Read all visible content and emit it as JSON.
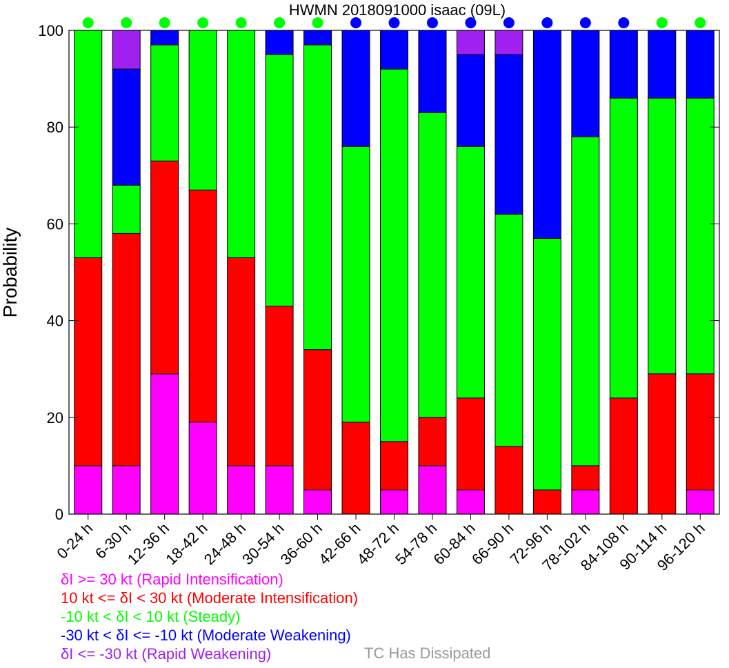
{
  "chart_data": {
    "type": "bar",
    "stacked": true,
    "title": "HWMN 2018091000 isaac (09L)",
    "ylabel": "Probability",
    "xlabel": "",
    "ylim": [
      0,
      100
    ],
    "yticks": [
      0,
      20,
      40,
      60,
      80,
      100
    ],
    "categories": [
      "0-24 h",
      "6-30 h",
      "12-36 h",
      "18-42 h",
      "24-48 h",
      "30-54 h",
      "36-60 h",
      "42-66 h",
      "48-72 h",
      "54-78 h",
      "60-84 h",
      "66-90 h",
      "72-96 h",
      "78-102 h",
      "84-108 h",
      "90-114 h",
      "96-120 h"
    ],
    "series": [
      {
        "name": "δI >= 30 kt (Rapid Intensification)",
        "color": "#ff00ff",
        "values": [
          10,
          10,
          29,
          19,
          10,
          10,
          5,
          0,
          5,
          10,
          5,
          0,
          0,
          5,
          0,
          0,
          5
        ]
      },
      {
        "name": "10 kt <= δI < 30 kt (Moderate Intensification)",
        "color": "#ff0000",
        "values": [
          43,
          48,
          44,
          48,
          43,
          33,
          29,
          19,
          10,
          10,
          19,
          14,
          5,
          5,
          24,
          29,
          24
        ]
      },
      {
        "name": "-10 kt < δI < 10 kt (Steady)",
        "color": "#00ff00",
        "values": [
          47,
          10,
          24,
          33,
          47,
          52,
          63,
          57,
          77,
          63,
          52,
          48,
          52,
          68,
          62,
          57,
          57
        ]
      },
      {
        "name": "-30 kt < δI <= -10 kt (Moderate Weakening)",
        "color": "#0000ff",
        "values": [
          0,
          24,
          3,
          0,
          0,
          5,
          3,
          24,
          8,
          17,
          19,
          33,
          43,
          22,
          14,
          14,
          14
        ]
      },
      {
        "name": "δI <= -30 kt (Rapid Weakening)",
        "color": "#a020f0",
        "values": [
          0,
          8,
          0,
          0,
          0,
          0,
          0,
          0,
          0,
          0,
          5,
          5,
          0,
          0,
          0,
          0,
          0
        ]
      }
    ],
    "dot_colors": [
      "#00ff00",
      "#00ff00",
      "#00ff00",
      "#00ff00",
      "#00ff00",
      "#00ff00",
      "#00ff00",
      "#0000ff",
      "#0000ff",
      "#0000ff",
      "#0000ff",
      "#0000ff",
      "#0000ff",
      "#0000ff",
      "#0000ff",
      "#00ff00",
      "#00ff00"
    ],
    "legend_placement": "bottom-left",
    "extra_legend": {
      "label": "TC Has Dissipated",
      "color": "#999999"
    },
    "grid": false
  }
}
